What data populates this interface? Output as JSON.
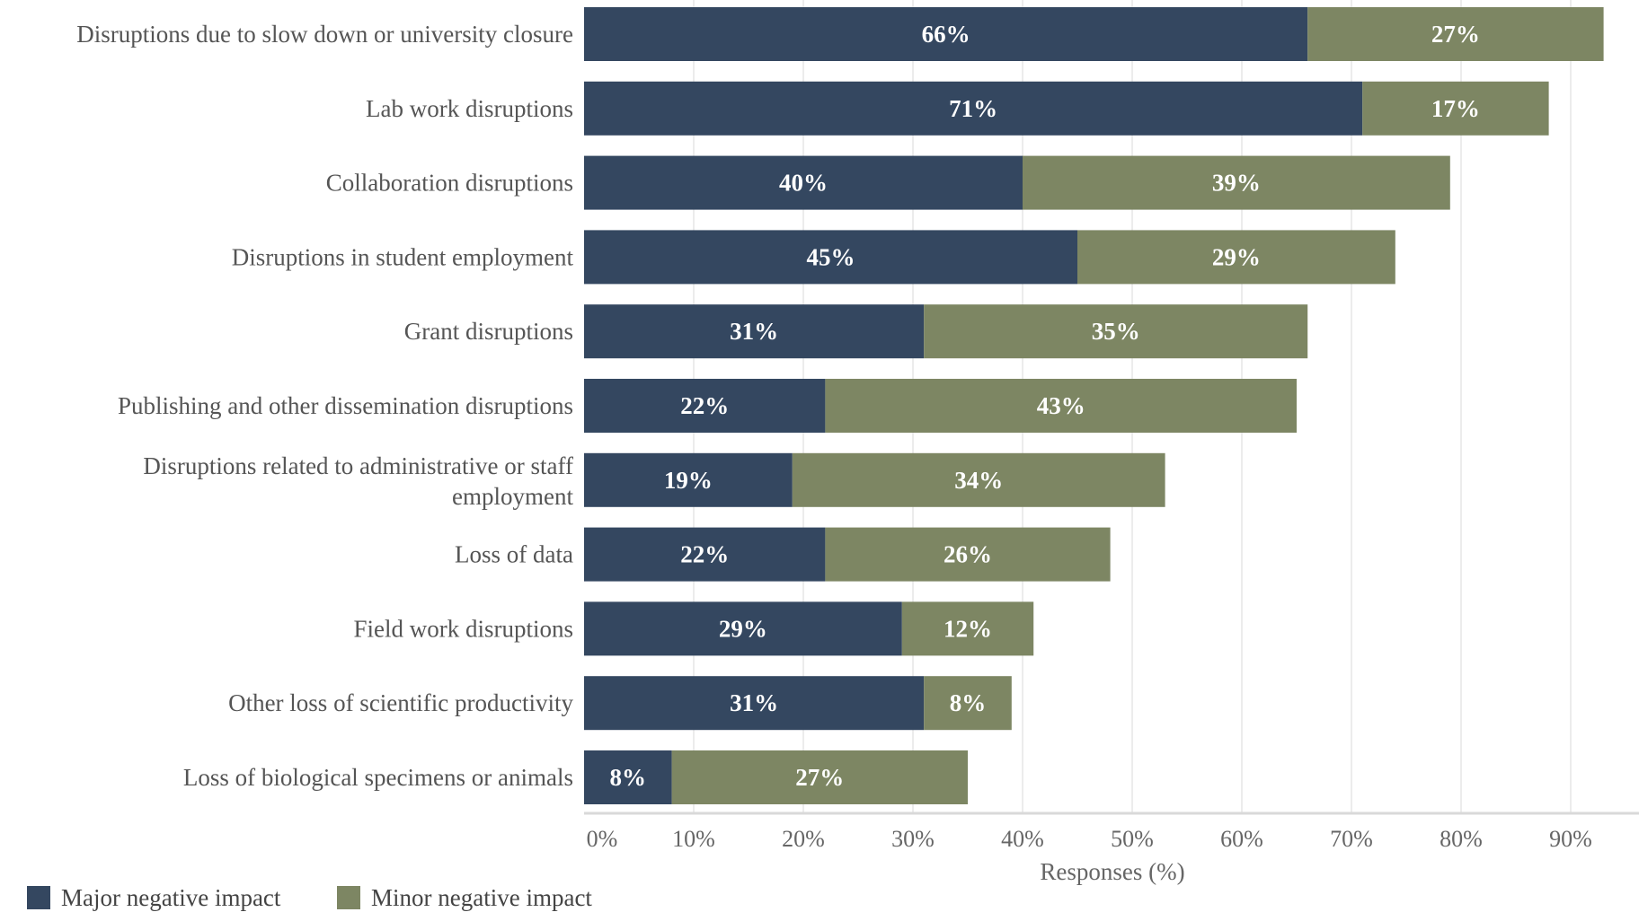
{
  "chart_data": {
    "type": "bar",
    "orientation": "horizontal",
    "stacked": true,
    "title": "",
    "xlabel": "Responses (%)",
    "ylabel": "",
    "xlim": [
      0,
      100
    ],
    "x_ticks": [
      "0%",
      "10%",
      "20%",
      "30%",
      "40%",
      "50%",
      "60%",
      "70%",
      "80%",
      "90%"
    ],
    "grid": "vertical",
    "legend_position": "bottom-left",
    "categories": [
      "Disruptions due to slow down or university closure",
      "Lab work disruptions",
      "Collaboration disruptions",
      "Disruptions in student employment",
      "Grant disruptions",
      "Publishing and other dissemination disruptions",
      "Disruptions related to administrative or staff employment",
      "Loss of data",
      "Field work disruptions",
      "Other loss of scientific productivity",
      "Loss of biological specimens or animals"
    ],
    "series": [
      {
        "name": "Major negative impact",
        "color": "#344760",
        "values": [
          66,
          71,
          40,
          45,
          31,
          22,
          19,
          22,
          29,
          31,
          8
        ],
        "labels": [
          "66%",
          "71%",
          "40%",
          "45%",
          "31%",
          "22%",
          "19%",
          "22%",
          "29%",
          "31%",
          "8%"
        ]
      },
      {
        "name": "Minor negative impact",
        "color": "#7d8663",
        "values": [
          27,
          17,
          39,
          29,
          35,
          43,
          34,
          26,
          12,
          8,
          27
        ],
        "labels": [
          "27%",
          "17%",
          "39%",
          "29%",
          "35%",
          "43%",
          "34%",
          "26%",
          "12%",
          "8%",
          "27%"
        ]
      }
    ]
  }
}
